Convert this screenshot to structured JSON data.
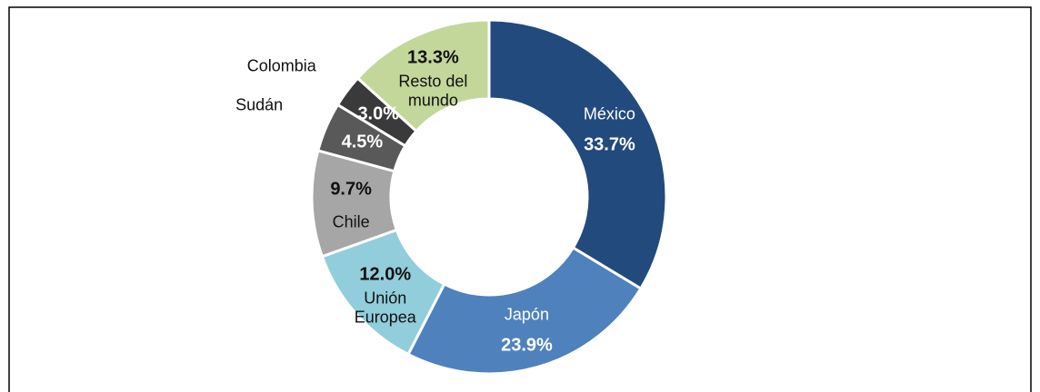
{
  "chart_data": {
    "type": "donut",
    "categories": [
      "México",
      "Japón",
      "Unión Europea",
      "Chile",
      "Sudán",
      "Colombia",
      "Resto del mundo"
    ],
    "values": [
      33.7,
      23.9,
      12.0,
      9.7,
      4.5,
      3.0,
      13.3
    ],
    "value_labels": [
      "33.7%",
      "23.9%",
      "12.0%",
      "9.7%",
      "4.5%",
      "3.0%",
      "13.3%"
    ],
    "colors": [
      "#234a7c",
      "#4f81bd",
      "#92cddc",
      "#a6a6a6",
      "#595959",
      "#3a3a3a",
      "#c4d79b"
    ]
  }
}
